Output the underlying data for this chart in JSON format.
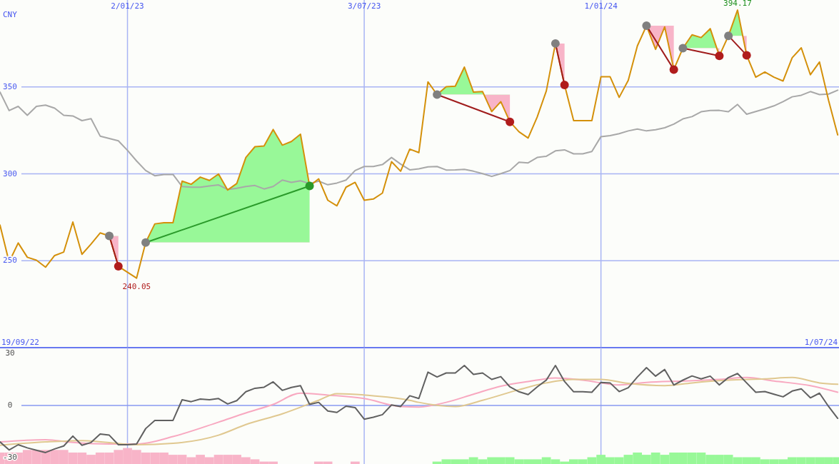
{
  "chart_data": [
    {
      "type": "line",
      "ylabel": "CNY",
      "xlim": [
        "2022-09-26",
        "2024-07-02"
      ],
      "ylim": [
        200,
        400
      ],
      "yticks": [
        250,
        300,
        350
      ],
      "xticks": [
        {
          "value": "2023-01-02",
          "label": "2/01/23"
        },
        {
          "value": "2023-07-03",
          "label": "3/07/23"
        },
        {
          "value": "2024-01-01",
          "label": "1/01/24"
        }
      ],
      "grid": true,
      "x": [
        "2022-09-26",
        "2022-10-03",
        "2022-10-10",
        "2022-10-17",
        "2022-10-24",
        "2022-10-31",
        "2022-11-07",
        "2022-11-14",
        "2022-11-21",
        "2022-11-28",
        "2022-12-05",
        "2022-12-12",
        "2022-12-19",
        "2022-12-26",
        "2023-01-02",
        "2023-01-09",
        "2023-01-16",
        "2023-01-23",
        "2023-01-30",
        "2023-02-06",
        "2023-02-13",
        "2023-02-20",
        "2023-02-27",
        "2023-03-06",
        "2023-03-13",
        "2023-03-20",
        "2023-03-27",
        "2023-04-03",
        "2023-04-10",
        "2023-04-17",
        "2023-04-24",
        "2023-05-01",
        "2023-05-08",
        "2023-05-15",
        "2023-05-22",
        "2023-05-29",
        "2023-06-05",
        "2023-06-12",
        "2023-06-19",
        "2023-06-26",
        "2023-07-03",
        "2023-07-10",
        "2023-07-17",
        "2023-07-24",
        "2023-07-31",
        "2023-08-07",
        "2023-08-14",
        "2023-08-21",
        "2023-08-28",
        "2023-09-04",
        "2023-09-11",
        "2023-09-18",
        "2023-09-25",
        "2023-10-02",
        "2023-10-09",
        "2023-10-16",
        "2023-10-23",
        "2023-10-30",
        "2023-11-06",
        "2023-11-13",
        "2023-11-20",
        "2023-11-27",
        "2023-12-04",
        "2023-12-11",
        "2023-12-18",
        "2023-12-25",
        "2024-01-01",
        "2024-01-08",
        "2024-01-15",
        "2024-01-22",
        "2024-01-29",
        "2024-02-05",
        "2024-02-12",
        "2024-02-19",
        "2024-02-26",
        "2024-03-04",
        "2024-03-11",
        "2024-03-18",
        "2024-03-25",
        "2024-04-01",
        "2024-04-08",
        "2024-04-15",
        "2024-04-22",
        "2024-04-29",
        "2024-05-06",
        "2024-05-13",
        "2024-05-20",
        "2024-05-27",
        "2024-06-03",
        "2024-06-10",
        "2024-06-17",
        "2024-06-24",
        "2024-07-01"
      ],
      "series": [
        {
          "color": "#a8a8a8",
          "values": [
            347,
            336.4,
            338.8,
            333.7,
            338.8,
            339.5,
            337.8,
            333.7,
            333.3,
            330.6,
            331.7,
            321.7,
            320.3,
            319,
            313.5,
            307.4,
            301.9,
            298.9,
            299.6,
            299.6,
            292.7,
            292.3,
            292.3,
            293,
            293.6,
            291,
            291.7,
            292.7,
            293.3,
            291.3,
            292.7,
            296.4,
            295.1,
            296,
            294.4,
            295.8,
            293.7,
            294.7,
            296.4,
            301.9,
            304.2,
            304.2,
            305.3,
            309.4,
            305.6,
            302.3,
            302.9,
            304,
            304.2,
            302.2,
            302.3,
            302.6,
            301.5,
            300.1,
            298.5,
            300.1,
            301.9,
            306.7,
            306.3,
            309.4,
            310.1,
            313.2,
            313.8,
            311.5,
            311.5,
            312.8,
            321.4,
            322,
            323.1,
            324.7,
            325.8,
            324.7,
            325.4,
            326.5,
            328.6,
            331.6,
            332.9,
            335.7,
            336.4,
            336.5,
            335.7,
            339.9,
            334.3,
            335.8,
            337.4,
            339.1,
            341.5,
            344.3,
            345.2,
            347.3,
            345.6,
            345.9,
            348.1
          ]
        },
        {
          "color": "#d4900a",
          "values": [
            270.5,
            249.3,
            260.2,
            252,
            250.3,
            246.3,
            253,
            255,
            272.3,
            253.7,
            259.6,
            266,
            264.3,
            246.8,
            243.4,
            240,
            260.5,
            271.2,
            271.9,
            271.9,
            295.8,
            294,
            298.1,
            296.2,
            299.9,
            290.7,
            294.4,
            309.4,
            315.6,
            316,
            325.5,
            316.5,
            318.6,
            322.8,
            293,
            297.1,
            284.8,
            281.6,
            292.3,
            295.1,
            284.8,
            285.5,
            288.9,
            307,
            301.5,
            314.2,
            312.2,
            352.9,
            345.6,
            350.1,
            350.4,
            361.4,
            347,
            347.3,
            335.8,
            341.5,
            329.9,
            324.2,
            320.6,
            332.7,
            347.7,
            375,
            351.1,
            330.6,
            330.6,
            330.6,
            355.9,
            355.9,
            344,
            353.8,
            373.6,
            385.2,
            371.6,
            384.5,
            360,
            372.3,
            380,
            378.4,
            383.5,
            367.9,
            379.4,
            394.2,
            368.2,
            355.6,
            358.6,
            355.6,
            353.4,
            366.8,
            372.5,
            357,
            364.3,
            342.2,
            322.4
          ]
        },
        {
          "color": "#a01c1c",
          "marker": "circle",
          "x": [
            "2022-12-19",
            "2022-12-26"
          ],
          "values": [
            264.3,
            246.8
          ],
          "colors": [
            "#808080",
            "#b01c1c"
          ]
        },
        {
          "color": "#2a9a2a",
          "marker": "circle",
          "x": [
            "2023-01-16",
            "2023-05-22"
          ],
          "values": [
            260.5,
            293
          ],
          "colors": [
            "#808080",
            "#2a9a2a"
          ]
        },
        {
          "color": "#a01c1c",
          "marker": "circle",
          "x": [
            "2023-08-28",
            "2023-10-23"
          ],
          "values": [
            345.6,
            329.9
          ],
          "colors": [
            "#808080",
            "#b01c1c"
          ]
        },
        {
          "color": "#a01c1c",
          "marker": "circle",
          "x": [
            "2023-11-27",
            "2023-12-04"
          ],
          "values": [
            375,
            351.1
          ],
          "colors": [
            "#808080",
            "#b01c1c"
          ]
        },
        {
          "color": "#a01c1c",
          "marker": "circle",
          "x": [
            "2024-02-05",
            "2024-02-26"
          ],
          "values": [
            385.2,
            360
          ],
          "colors": [
            "#808080",
            "#b01c1c"
          ]
        },
        {
          "color": "#a01c1c",
          "marker": "circle",
          "x": [
            "2024-03-04",
            "2024-04-01"
          ],
          "values": [
            372.3,
            367.9
          ],
          "colors": [
            "#808080",
            "#b01c1c"
          ]
        },
        {
          "color": "#a01c1c",
          "marker": "circle",
          "x": [
            "2024-04-08",
            "2024-04-22"
          ],
          "values": [
            379.4,
            368.2
          ],
          "colors": [
            "#808080",
            "#b01c1c"
          ]
        }
      ],
      "annotations": [
        {
          "text": "240.05",
          "x": "2023-01-09",
          "y": 240.05
        },
        {
          "text": "394.17",
          "x": "2024-04-15",
          "y": 394.17
        },
        "19/09/22",
        "1/07/24"
      ]
    },
    {
      "type": "line",
      "xlim": [
        "2022-09-26",
        "2024-07-02"
      ],
      "ylim": [
        -33.7,
        33.3
      ],
      "yticks": [
        30,
        0,
        -30
      ],
      "xticks": [
        {
          "value": "2023-01-02",
          "label": null
        },
        {
          "value": "2023-07-03",
          "label": null
        },
        {
          "value": "2024-01-01",
          "label": null
        }
      ],
      "grid": "x",
      "tick_labels": "y",
      "ref_lines": [
        {
          "axis": "y",
          "value": 0,
          "color": "#8898f0"
        }
      ],
      "x": [
        "2022-09-26",
        "2022-10-03",
        "2022-10-10",
        "2022-10-17",
        "2022-10-24",
        "2022-10-31",
        "2022-11-07",
        "2022-11-14",
        "2022-11-21",
        "2022-11-28",
        "2022-12-05",
        "2022-12-12",
        "2022-12-19",
        "2022-12-26",
        "2023-01-02",
        "2023-01-09",
        "2023-01-16",
        "2023-01-23",
        "2023-01-30",
        "2023-02-06",
        "2023-02-13",
        "2023-02-20",
        "2023-02-27",
        "2023-03-06",
        "2023-03-13",
        "2023-03-20",
        "2023-03-27",
        "2023-04-03",
        "2023-04-10",
        "2023-04-17",
        "2023-04-24",
        "2023-05-01",
        "2023-05-08",
        "2023-05-15",
        "2023-05-22",
        "2023-05-29",
        "2023-06-05",
        "2023-06-12",
        "2023-06-19",
        "2023-06-26",
        "2023-07-03",
        "2023-07-10",
        "2023-07-17",
        "2023-07-24",
        "2023-07-31",
        "2023-08-07",
        "2023-08-14",
        "2023-08-21",
        "2023-08-28",
        "2023-09-04",
        "2023-09-11",
        "2023-09-18",
        "2023-09-25",
        "2023-10-02",
        "2023-10-09",
        "2023-10-16",
        "2023-10-23",
        "2023-10-30",
        "2023-11-06",
        "2023-11-13",
        "2023-11-20",
        "2023-11-27",
        "2023-12-04",
        "2023-12-11",
        "2023-12-18",
        "2023-12-25",
        "2024-01-01",
        "2024-01-08",
        "2024-01-15",
        "2024-01-22",
        "2024-01-29",
        "2024-02-05",
        "2024-02-12",
        "2024-02-19",
        "2024-02-26",
        "2024-03-04",
        "2024-03-11",
        "2024-03-18",
        "2024-03-25",
        "2024-04-01",
        "2024-04-08",
        "2024-04-15",
        "2024-04-22",
        "2024-04-29",
        "2024-05-06",
        "2024-05-13",
        "2024-05-20",
        "2024-05-27",
        "2024-06-03",
        "2024-06-10",
        "2024-06-17",
        "2024-06-24",
        "2024-07-01"
      ],
      "series": [
        {
          "type": "bar",
          "color": "#f8b4c8",
          "base": [
            -33.7,
            -33.7,
            -33.7,
            -33.7,
            -33.7,
            -33.7,
            -33.7,
            -33.7,
            -33.7,
            -33.7,
            -33.7,
            -33.7,
            -33.7,
            -33.7,
            -33.7,
            -33.7,
            -33.7,
            -33.7,
            -33.7,
            -33.7,
            -33.7,
            -33.7,
            -33.7,
            -33.7,
            -33.7,
            -33.7,
            -33.7,
            -33.7,
            -33.7,
            -33.7,
            -33.7,
            null,
            null,
            null,
            null,
            -33.7,
            -33.7,
            null,
            null,
            -33.7,
            null,
            null,
            null,
            null,
            null,
            null,
            null,
            null,
            null,
            null,
            null,
            null,
            null,
            null,
            null,
            null,
            null,
            null,
            null,
            null,
            null,
            null,
            null,
            null,
            null,
            null,
            null,
            null,
            null,
            null,
            null,
            null,
            null,
            null,
            null,
            null,
            null,
            null,
            null,
            null,
            null,
            null,
            null,
            null,
            null,
            null,
            null,
            null,
            null,
            null,
            null,
            null,
            null
          ],
          "values": [
            6.6,
            6.6,
            6.6,
            8.1,
            8.1,
            8.1,
            8.1,
            8.1,
            6.6,
            6.6,
            5.3,
            6.6,
            6.6,
            8.1,
            9.2,
            8.1,
            6.6,
            6.6,
            6.6,
            5.3,
            5.3,
            3.9,
            5.3,
            3.9,
            5.3,
            5.3,
            5.3,
            3.9,
            2.7,
            1.4,
            1.4,
            null,
            null,
            null,
            null,
            1.4,
            1.4,
            null,
            null,
            1.4,
            null,
            null,
            null,
            null,
            null,
            null,
            null,
            null,
            null,
            null,
            null,
            null,
            null,
            null,
            null,
            null,
            null,
            null,
            null,
            null,
            null,
            null,
            null,
            null,
            null,
            null,
            null,
            null,
            null,
            null,
            null,
            null,
            null,
            null,
            null,
            null,
            null,
            null,
            null,
            null,
            null,
            null,
            null,
            null,
            null,
            null,
            null,
            null,
            null,
            null,
            null,
            null,
            null
          ]
        },
        {
          "type": "bar",
          "color": "#98f898",
          "base": [
            null,
            null,
            null,
            null,
            null,
            null,
            null,
            null,
            null,
            null,
            null,
            null,
            null,
            null,
            null,
            null,
            null,
            null,
            null,
            null,
            null,
            null,
            null,
            null,
            null,
            null,
            null,
            null,
            null,
            null,
            null,
            null,
            null,
            null,
            null,
            null,
            null,
            null,
            null,
            null,
            null,
            null,
            null,
            null,
            null,
            null,
            null,
            null,
            -33.7,
            -33.7,
            -33.7,
            -33.7,
            -33.7,
            -33.7,
            -33.7,
            -33.7,
            -33.7,
            -33.7,
            -33.7,
            -33.7,
            -33.7,
            -33.7,
            -33.7,
            -33.7,
            -33.7,
            -33.7,
            -33.7,
            -33.7,
            -33.7,
            -33.7,
            -33.7,
            -33.7,
            -33.7,
            -33.7,
            -33.7,
            -33.7,
            -33.7,
            -33.7,
            -33.7,
            -33.7,
            -33.7,
            -33.7,
            -33.7,
            -33.7,
            -33.7,
            -33.7,
            -33.7,
            -33.7,
            -33.7,
            -33.7,
            -33.7,
            -33.7,
            -33.7
          ],
          "values": [
            null,
            null,
            null,
            null,
            null,
            null,
            null,
            null,
            null,
            null,
            null,
            null,
            null,
            null,
            null,
            null,
            null,
            null,
            null,
            null,
            null,
            null,
            null,
            null,
            null,
            null,
            null,
            null,
            null,
            null,
            null,
            null,
            null,
            null,
            null,
            null,
            null,
            null,
            null,
            null,
            null,
            null,
            null,
            null,
            null,
            null,
            null,
            null,
            1.4,
            2.7,
            2.7,
            2.7,
            3.9,
            2.7,
            3.9,
            3.9,
            3.9,
            2.7,
            2.7,
            2.7,
            3.9,
            2.7,
            1.4,
            2.7,
            2.7,
            3.9,
            5.3,
            3.9,
            3.9,
            5.3,
            6.6,
            5.3,
            6.6,
            5.3,
            6.6,
            6.6,
            6.6,
            6.6,
            5.3,
            5.3,
            5.3,
            3.9,
            3.9,
            3.9,
            2.7,
            2.7,
            2.7,
            3.9,
            3.9,
            3.9,
            3.9,
            3.9,
            3.9
          ]
        },
        {
          "color": "#f8a8c0",
          "x": [
            "2022-09-26",
            "2022-10-31",
            "2022-11-21",
            "2022-12-19",
            "2023-01-09",
            "2023-02-06",
            "2023-03-13",
            "2023-04-03",
            "2023-04-24",
            "2023-05-15",
            "2023-06-05",
            "2023-07-03",
            "2023-07-31",
            "2023-08-14",
            "2023-09-04",
            "2023-09-25",
            "2023-10-16",
            "2023-11-06",
            "2023-11-27",
            "2023-12-18",
            "2024-01-15",
            "2024-02-05",
            "2024-03-04",
            "2024-04-01",
            "2024-04-22",
            "2024-05-13",
            "2024-06-10",
            "2024-07-01"
          ],
          "values": [
            -21,
            -19.7,
            -21.3,
            -22.2,
            -22.2,
            -17.9,
            -9.6,
            -4.3,
            0.6,
            7.1,
            6,
            4,
            -0.6,
            -0.9,
            1.8,
            6.5,
            11.1,
            13.8,
            15.8,
            14.6,
            11.8,
            13.3,
            14.1,
            15,
            16.1,
            14.1,
            11.4,
            7.6
          ]
        },
        {
          "color": "#e0c890",
          "x": [
            "2022-09-26",
            "2022-10-31",
            "2022-11-28",
            "2023-01-09",
            "2023-02-06",
            "2023-03-13",
            "2023-04-03",
            "2023-05-01",
            "2023-05-29",
            "2023-06-12",
            "2023-07-10",
            "2023-08-07",
            "2023-08-14",
            "2023-09-11",
            "2023-10-02",
            "2023-10-30",
            "2023-11-20",
            "2023-12-11",
            "2024-01-01",
            "2024-01-22",
            "2024-02-19",
            "2024-03-11",
            "2024-04-08",
            "2024-05-06",
            "2024-05-27",
            "2024-06-17",
            "2024-07-01"
          ],
          "values": [
            -22.9,
            -21,
            -20.2,
            -22.6,
            -21.8,
            -17.1,
            -11,
            -4.8,
            3,
            6.8,
            5.6,
            3,
            1.8,
            -0.6,
            3,
            9.1,
            13,
            15,
            15,
            12.7,
            11.4,
            13,
            14.6,
            15.3,
            16.1,
            13,
            12.2
          ]
        },
        {
          "color": "#606060",
          "values": [
            -21,
            -25.6,
            -22.6,
            -24.4,
            -25.8,
            -27.1,
            -25,
            -23.3,
            -17.6,
            -22.9,
            -21.3,
            -16.4,
            -17.1,
            -22.6,
            -22.6,
            -22.2,
            -13.3,
            -8.6,
            -8.6,
            -8.6,
            3.3,
            2.2,
            3.7,
            3.3,
            4,
            0.9,
            2.8,
            7.9,
            9.9,
            10.5,
            13.6,
            8.7,
            10.4,
            11.4,
            0.6,
            1.8,
            -3.2,
            -4,
            -0.4,
            -1.2,
            -7.9,
            -6.8,
            -5.3,
            0.3,
            -0.6,
            5.6,
            4,
            19.2,
            16.4,
            18.7,
            18.7,
            23,
            17.9,
            18.7,
            15,
            16.6,
            10.7,
            7.9,
            6.3,
            10.7,
            14.6,
            23,
            13.8,
            7.9,
            7.9,
            7.6,
            13.3,
            13,
            8,
            10.2,
            16.4,
            21.8,
            16.9,
            20.7,
            11.8,
            14.6,
            17,
            15.3,
            16.9,
            11.8,
            16.1,
            18.4,
            13,
            7.6,
            8,
            6.5,
            5,
            8.3,
            9.6,
            4.4,
            7.1,
            -0.6,
            -7.4
          ]
        }
      ]
    }
  ]
}
